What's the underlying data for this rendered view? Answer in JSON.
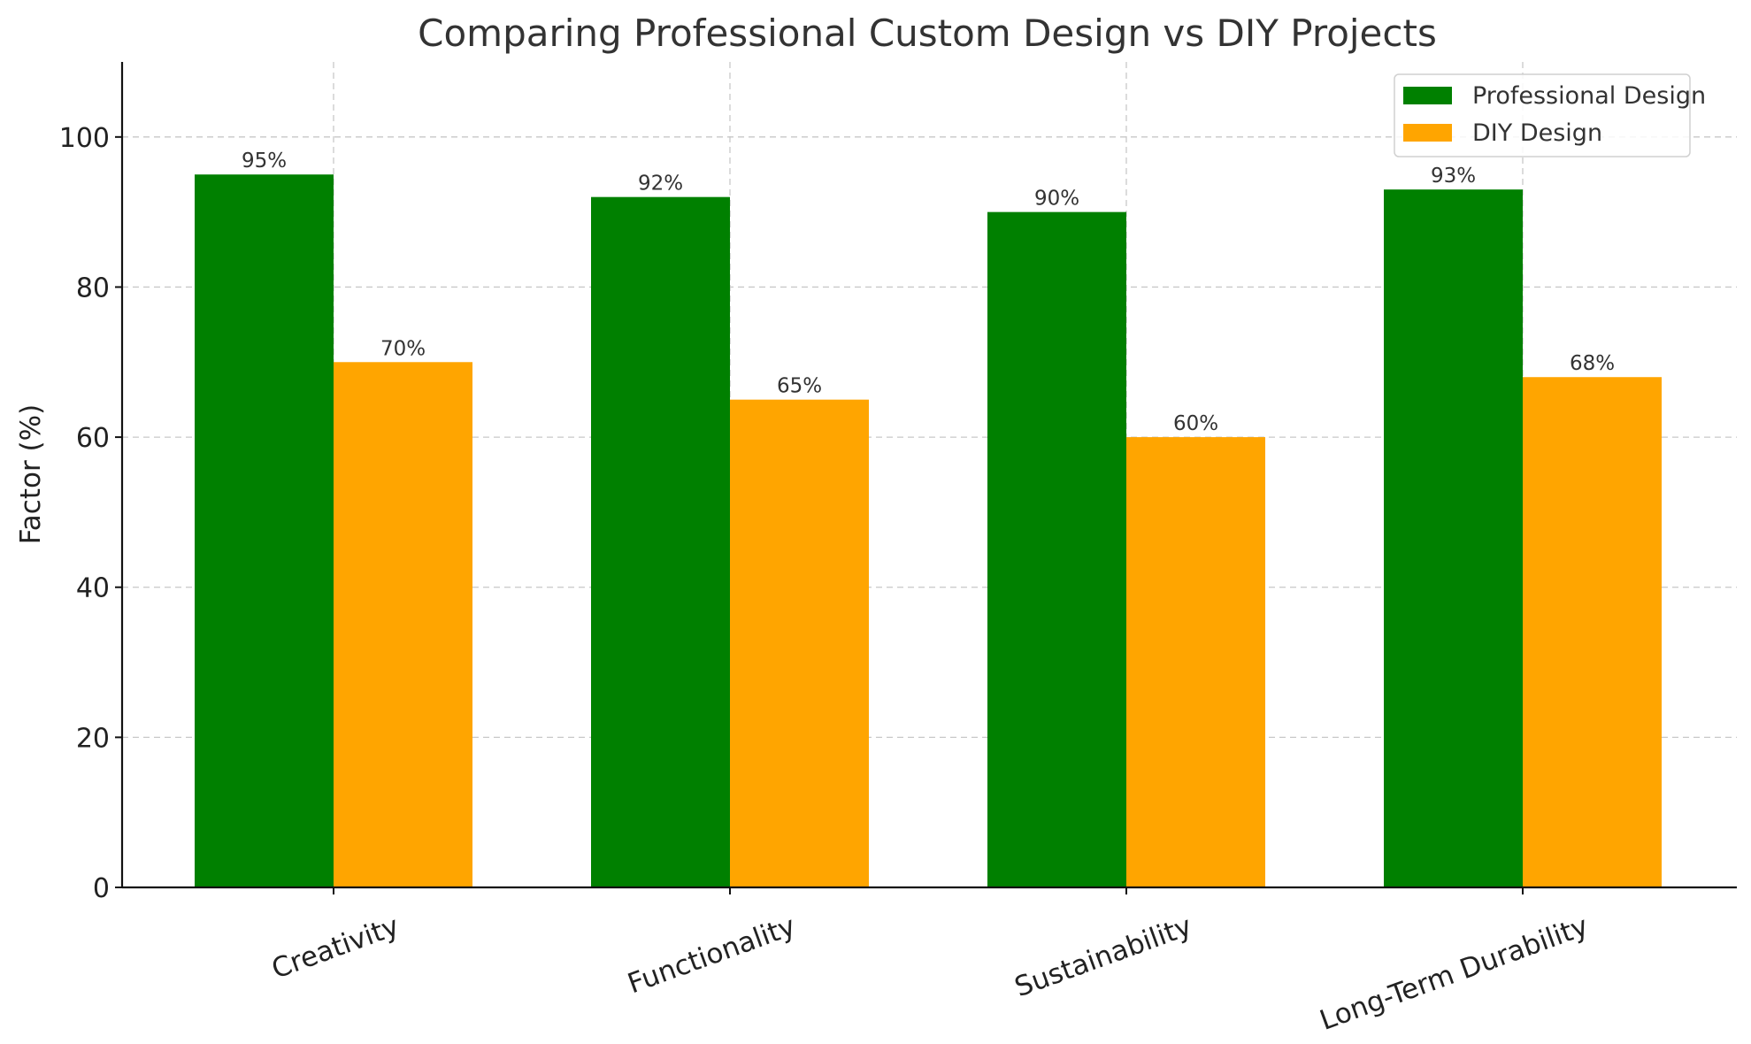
{
  "chart_data": {
    "type": "bar",
    "title": "Comparing Professional Custom Design vs DIY Projects",
    "xlabel": "",
    "ylabel": "Factor (%)",
    "categories": [
      "Creativity",
      "Functionality",
      "Sustainability",
      "Long-Term Durability"
    ],
    "series": [
      {
        "name": "Professional Design",
        "values": [
          95,
          92,
          90,
          93
        ],
        "color": "#008000"
      },
      {
        "name": "DIY Design",
        "values": [
          70,
          65,
          60,
          68
        ],
        "color": "#FFA500"
      }
    ],
    "data_labels": [
      [
        "95%",
        "92%",
        "90%",
        "93%"
      ],
      [
        "70%",
        "65%",
        "60%",
        "68%"
      ]
    ],
    "ylim": [
      0,
      110
    ],
    "yticks": [
      0,
      20,
      40,
      60,
      80,
      100
    ],
    "grid": true,
    "legend_position": "top-right",
    "x_tick_rotation_degrees": 20
  }
}
